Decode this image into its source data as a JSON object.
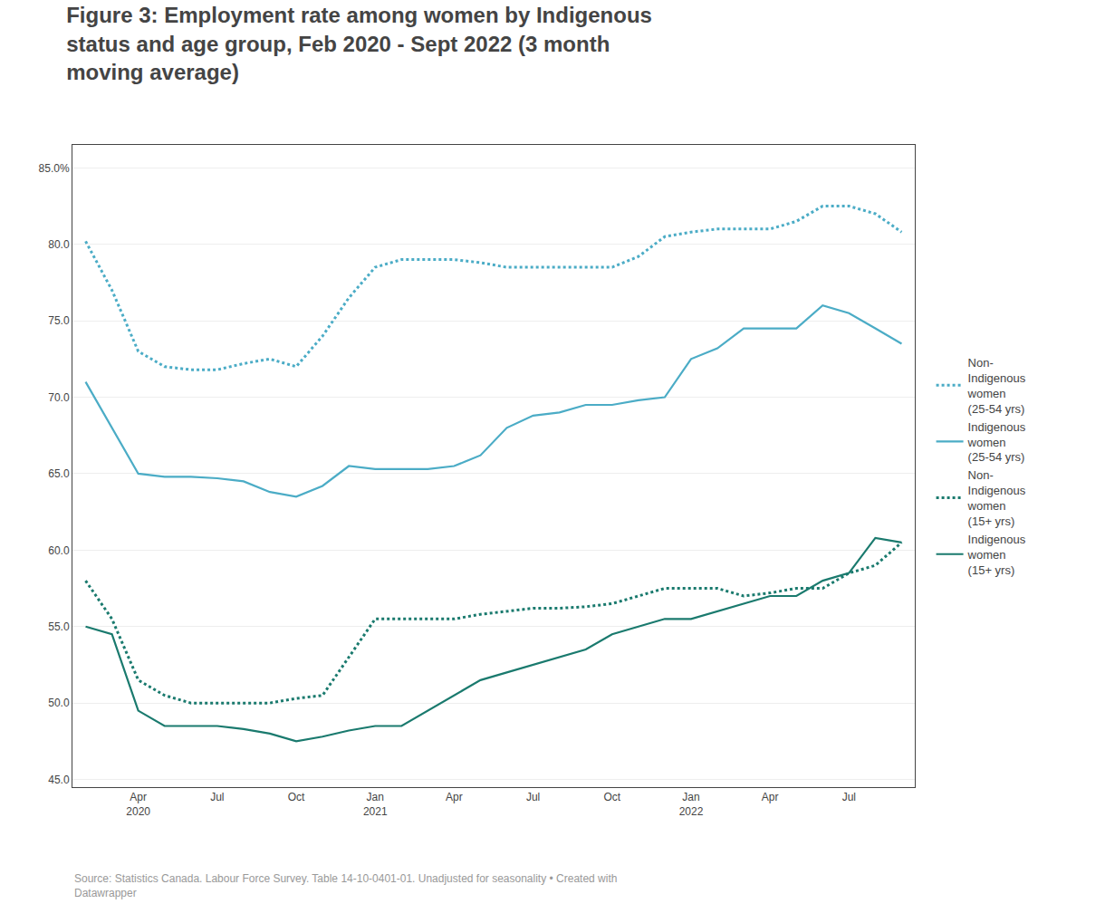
{
  "chart_data": {
    "type": "line",
    "title": "Figure 3: Employment rate among women by Indigenous\nstatus and age group, Feb 2020 - Sept 2022 (3 month\nmoving average)",
    "annotations": [
      "Source: Statistics Canada. Labour Force Survey. Table 14-10-0401-01. Unadjusted for seasonality • Created with\nDatawrapper"
    ],
    "categories": [
      null,
      null,
      "Apr\n2020",
      null,
      null,
      "Jul",
      null,
      null,
      "Oct",
      null,
      null,
      "Jan\n2021",
      null,
      null,
      "Apr",
      null,
      null,
      "Jul",
      null,
      null,
      "Oct",
      null,
      null,
      "Jan\n2022",
      null,
      null,
      "Apr",
      null,
      null,
      "Jul",
      null,
      null
    ],
    "series": [
      {
        "name": "Non-\nIndigenous\nwomen\n(25-54 yrs)",
        "color": "#4bacc6",
        "line_style": "dotted",
        "values": [
          80.2,
          77.0,
          73.0,
          72.0,
          71.8,
          71.8,
          72.2,
          72.5,
          72.0,
          74.0,
          76.5,
          78.5,
          79.0,
          79.0,
          79.0,
          78.8,
          78.5,
          78.5,
          78.5,
          78.5,
          78.5,
          79.2,
          80.5,
          80.8,
          81.0,
          81.0,
          81.0,
          81.5,
          82.5,
          82.5,
          82.0,
          80.8
        ]
      },
      {
        "name": "Indigenous\nwomen\n(25-54 yrs)",
        "color": "#4bacc6",
        "line_style": "solid",
        "values": [
          71.0,
          68.0,
          65.0,
          64.8,
          64.8,
          64.7,
          64.5,
          63.8,
          63.5,
          64.2,
          65.5,
          65.3,
          65.3,
          65.3,
          65.5,
          66.2,
          68.0,
          68.8,
          69.0,
          69.5,
          69.5,
          69.8,
          70.0,
          72.5,
          73.2,
          74.5,
          74.5,
          74.5,
          76.0,
          75.5,
          74.5,
          73.5
        ]
      },
      {
        "name": "Non-\nIndigenous\nwomen\n(15+ yrs)",
        "color": "#1a7a6e",
        "line_style": "dotted",
        "values": [
          58.0,
          55.5,
          51.5,
          50.5,
          50.0,
          50.0,
          50.0,
          50.0,
          50.3,
          50.5,
          53.0,
          55.5,
          55.5,
          55.5,
          55.5,
          55.8,
          56.0,
          56.2,
          56.2,
          56.3,
          56.5,
          57.0,
          57.5,
          57.5,
          57.5,
          57.0,
          57.2,
          57.5,
          57.5,
          58.5,
          59.0,
          60.5
        ]
      },
      {
        "name": "Indigenous\nwomen\n(15+ yrs)",
        "color": "#1a7a6e",
        "line_style": "solid",
        "values": [
          55.0,
          54.5,
          49.5,
          48.5,
          48.5,
          48.5,
          48.3,
          48.0,
          47.5,
          47.8,
          48.2,
          48.5,
          48.5,
          49.5,
          50.5,
          51.5,
          52.0,
          52.5,
          53.0,
          53.5,
          54.5,
          55.0,
          55.5,
          55.5,
          56.0,
          56.5,
          57.0,
          57.0,
          58.0,
          58.5,
          60.8,
          60.5
        ]
      }
    ],
    "ylim": [
      44.5,
      86.5
    ],
    "yticks": [
      {
        "value": 45.0,
        "label": "45.0"
      },
      {
        "value": 50.0,
        "label": "50.0"
      },
      {
        "value": 55.0,
        "label": "55.0"
      },
      {
        "value": 60.0,
        "label": "60.0"
      },
      {
        "value": 65.0,
        "label": "65.0"
      },
      {
        "value": 70.0,
        "label": "70.0"
      },
      {
        "value": 75.0,
        "label": "75.0"
      },
      {
        "value": 80.0,
        "label": "80.0"
      },
      {
        "value": 85.0,
        "label": "85.0%"
      }
    ],
    "grid": true,
    "legend": "right"
  }
}
